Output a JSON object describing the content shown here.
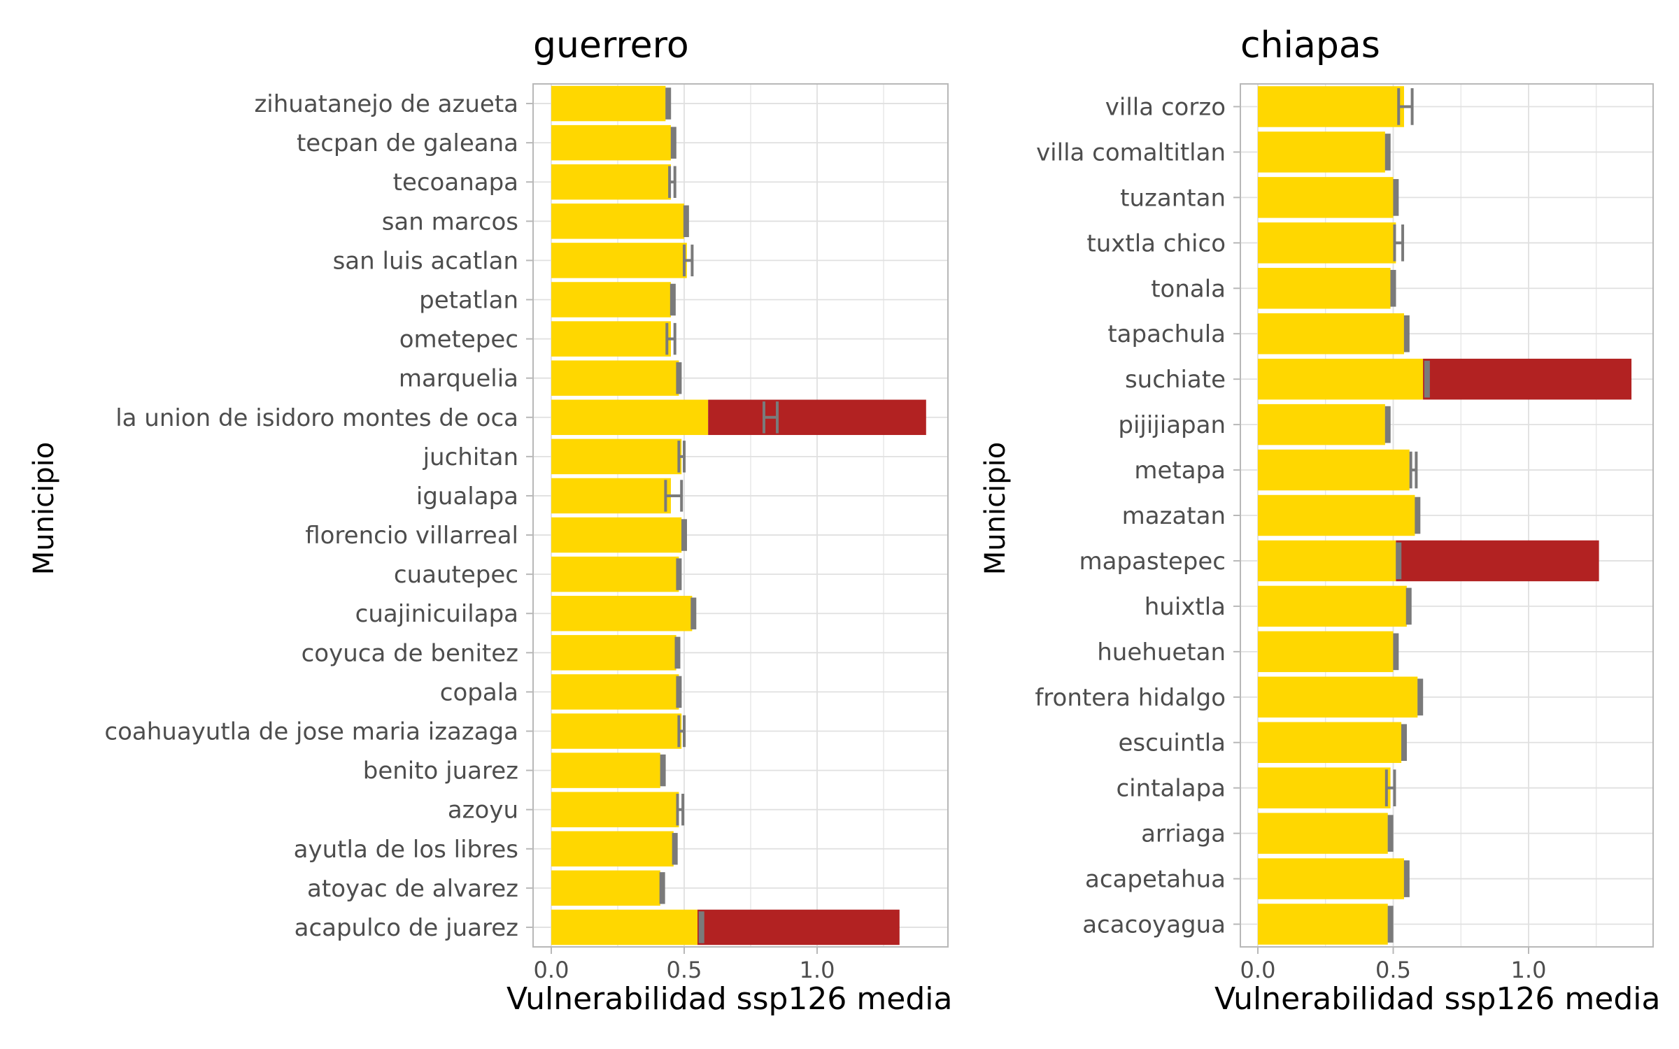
{
  "colors": {
    "yellow": "#ffd700",
    "red": "#b22222",
    "grey": "#7a7a7a",
    "grid": "#e0e0e0",
    "panel_border": "#b8b8b8",
    "tick_text": "#4d4d4d",
    "title_text": "#000000"
  },
  "chart_data": [
    {
      "type": "bar",
      "orientation": "horizontal",
      "title": "guerrero",
      "xlabel": "Vulnerabilidad ssp126 media",
      "ylabel": "Municipio",
      "xlim": [
        0,
        1.49
      ],
      "xticks": [
        "0.0",
        "0.5",
        "1.0"
      ],
      "xtick_values": [
        0,
        0.5,
        1.0
      ],
      "grid": true,
      "legend": "none",
      "categories": [
        "zihuatanejo de azueta",
        "tecpan de galeana",
        "tecoanapa",
        "san marcos",
        "san luis acatlan",
        "petatlan",
        "ometepec",
        "marquelia",
        "la union de isidoro montes de oca",
        "juchitan",
        "igualapa",
        "florencio villarreal",
        "cuautepec",
        "cuajinicuilapa",
        "coyuca de benitez",
        "copala",
        "coahuayutla de jose maria izazaga",
        "benito juarez",
        "azoyu",
        "ayutla de los libres",
        "atoyac de alvarez",
        "acapulco de juarez"
      ],
      "series": [
        {
          "values": [
            0.43,
            0.45,
            0.45,
            0.5,
            0.51,
            0.45,
            0.45,
            0.48,
            0.59,
            0.49,
            0.45,
            0.49,
            0.48,
            0.53,
            0.47,
            0.48,
            0.49,
            0.41,
            0.48,
            0.46,
            0.41,
            0.55
          ]
        },
        {
          "values": [
            0,
            0,
            0,
            0,
            0,
            0,
            0,
            0,
            0.82,
            0,
            0,
            0,
            0,
            0,
            0,
            0,
            0,
            0,
            0,
            0,
            0,
            0.76
          ]
        }
      ],
      "error_low": [
        0.435,
        0.455,
        0.445,
        0.505,
        0.5,
        0.455,
        0.435,
        0.475,
        0.8,
        0.48,
        0.43,
        0.495,
        0.475,
        0.53,
        0.47,
        0.475,
        0.48,
        0.415,
        0.475,
        0.46,
        0.415,
        0.56
      ],
      "error_high": [
        0.445,
        0.465,
        0.465,
        0.51,
        0.53,
        0.46,
        0.465,
        0.485,
        0.85,
        0.5,
        0.49,
        0.505,
        0.485,
        0.54,
        0.48,
        0.485,
        0.5,
        0.425,
        0.495,
        0.47,
        0.42,
        0.57
      ]
    },
    {
      "type": "bar",
      "orientation": "horizontal",
      "title": "chiapas",
      "xlabel": "Vulnerabilidad ssp126 media",
      "ylabel": "Municipio",
      "xlim": [
        0,
        1.45
      ],
      "xticks": [
        "0.0",
        "0.5",
        "1.0"
      ],
      "xtick_values": [
        0,
        0.5,
        1.0
      ],
      "grid": true,
      "legend": "none",
      "categories": [
        "villa corzo",
        "villa comaltitlan",
        "tuzantan",
        "tuxtla chico",
        "tonala",
        "tapachula",
        "suchiate",
        "pijijiapan",
        "metapa",
        "mazatan",
        "mapastepec",
        "huixtla",
        "huehuetan",
        "frontera hidalgo",
        "escuintla",
        "cintalapa",
        "arriaga",
        "acapetahua",
        "acacoyagua"
      ],
      "series": [
        {
          "values": [
            0.54,
            0.47,
            0.5,
            0.51,
            0.49,
            0.54,
            0.61,
            0.47,
            0.56,
            0.58,
            0.51,
            0.55,
            0.5,
            0.59,
            0.53,
            0.49,
            0.48,
            0.54,
            0.48
          ]
        },
        {
          "values": [
            0,
            0,
            0,
            0,
            0,
            0,
            0.77,
            0,
            0,
            0,
            0.75,
            0,
            0,
            0,
            0,
            0,
            0,
            0,
            0
          ]
        }
      ],
      "error_low": [
        0.52,
        0.475,
        0.505,
        0.505,
        0.495,
        0.545,
        0.62,
        0.475,
        0.565,
        0.585,
        0.515,
        0.55,
        0.505,
        0.595,
        0.535,
        0.475,
        0.485,
        0.545,
        0.485
      ],
      "error_high": [
        0.57,
        0.485,
        0.515,
        0.535,
        0.505,
        0.555,
        0.63,
        0.485,
        0.585,
        0.595,
        0.525,
        0.565,
        0.515,
        0.605,
        0.545,
        0.505,
        0.495,
        0.555,
        0.495
      ]
    }
  ]
}
